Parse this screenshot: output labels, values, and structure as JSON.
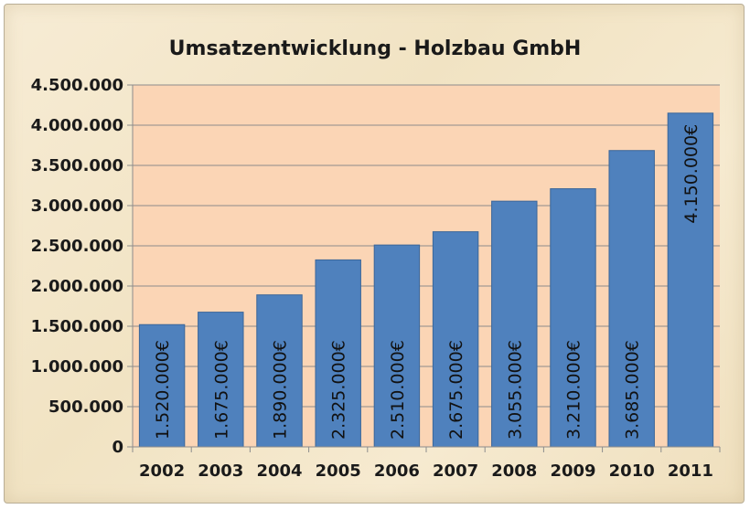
{
  "chart_data": {
    "type": "bar",
    "title": "Umsatzentwicklung - Holzbau GmbH",
    "xlabel": "",
    "ylabel": "",
    "categories": [
      "2002",
      "2003",
      "2004",
      "2005",
      "2006",
      "2007",
      "2008",
      "2009",
      "2010",
      "2011"
    ],
    "values": [
      1520000,
      1675000,
      1890000,
      2325000,
      2510000,
      2675000,
      3055000,
      3210000,
      3685000,
      4150000
    ],
    "data_labels": [
      "1.520.000€",
      "1.675.000€",
      "1.890.000€",
      "2.325.000€",
      "2.510.000€",
      "2.675.000€",
      "3.055.000€",
      "3.210.000€",
      "3.685.000€",
      "4.150.000€"
    ],
    "ylim": [
      0,
      4500000
    ],
    "yticks": [
      0,
      500000,
      1000000,
      1500000,
      2000000,
      2500000,
      3000000,
      3500000,
      4000000,
      4500000
    ],
    "ytick_labels": [
      "0",
      "500.000",
      "1.000.000",
      "1.500.000",
      "2.000.000",
      "2.500.000",
      "3.000.000",
      "3.500.000",
      "4.000.000",
      "4.500.000"
    ],
    "grid": true,
    "legend": "none",
    "colors": {
      "bar": "#4f81bd",
      "bar_edge": "#3b6699",
      "plot_area": "#fbd5b5",
      "gridline": "#8c8c8c",
      "text": "#1a1a1a"
    }
  }
}
